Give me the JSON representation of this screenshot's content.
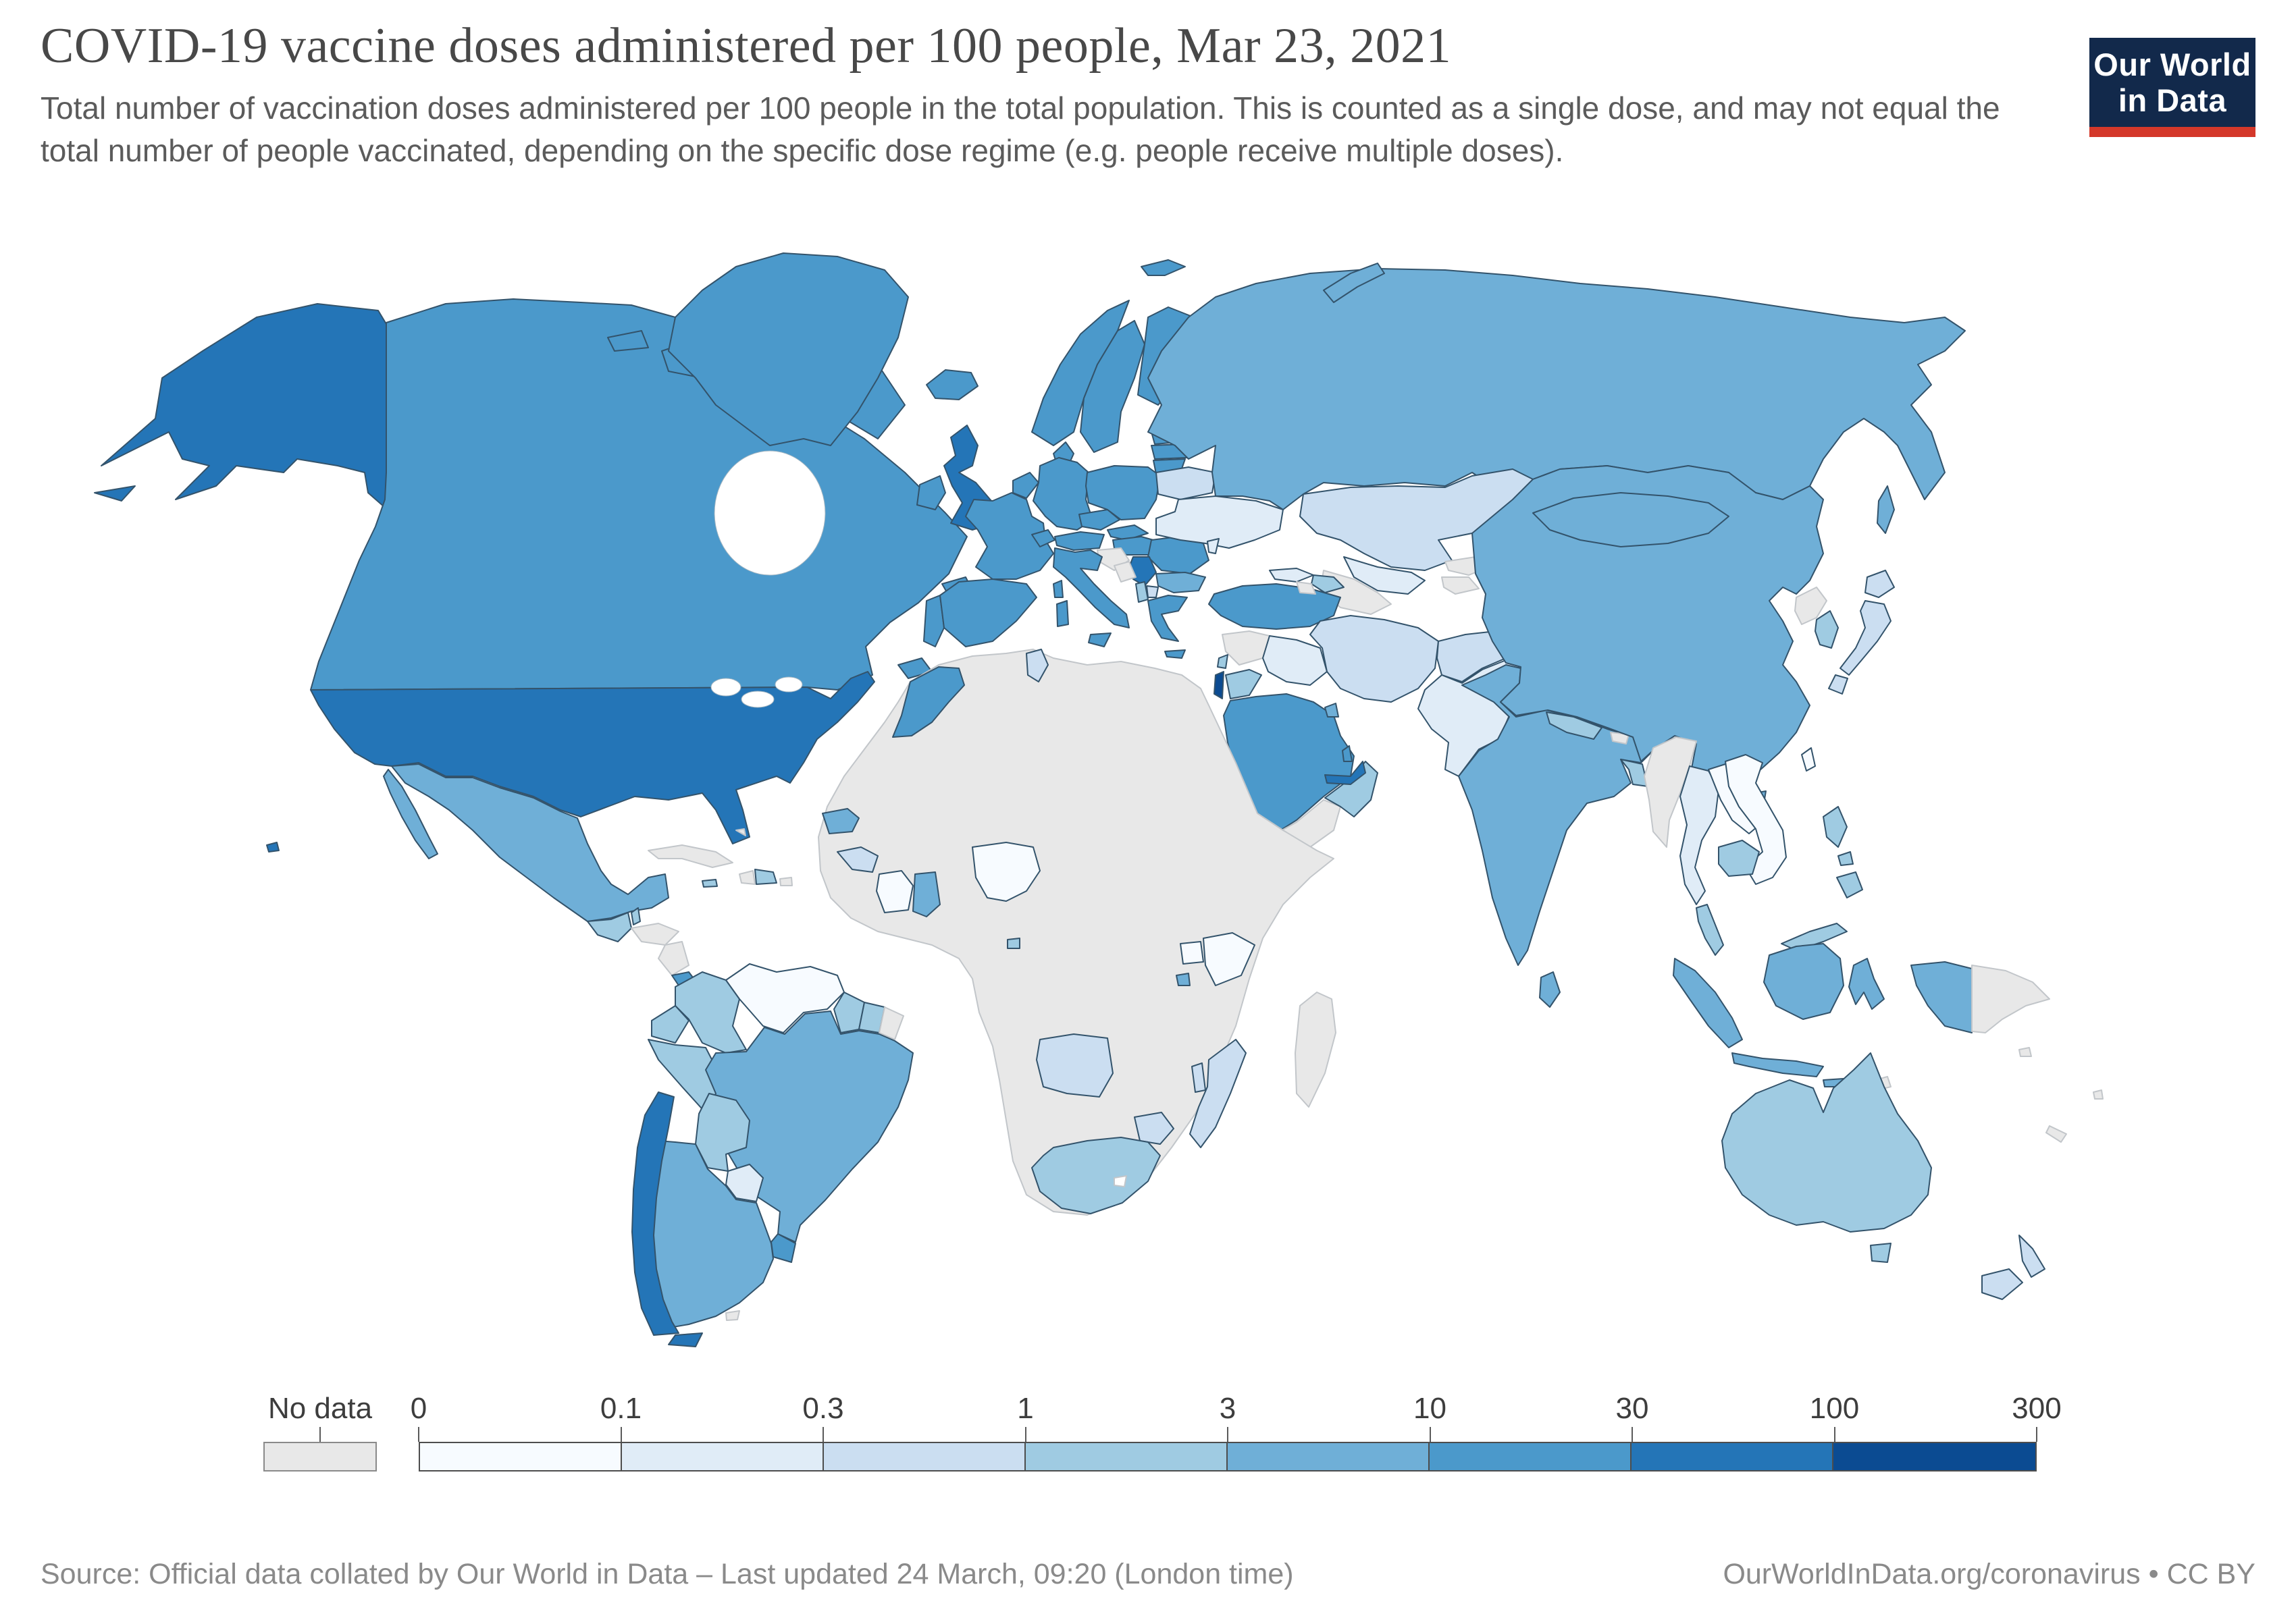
{
  "header": {
    "title": "COVID-19 vaccine doses administered per 100 people, Mar 23, 2021",
    "subtitle": "Total number of vaccination doses administered per 100 people in the total population. This is counted as a single dose, and may not equal the total number of people vaccinated, depending on the specific dose regime (e.g. people receive multiple doses)."
  },
  "logo": {
    "line1": "Our World",
    "line2": "in Data",
    "bg_color": "#12294b",
    "accent_color": "#d4382a"
  },
  "footer": {
    "source": "Source: Official data collated by Our World in Data – Last updated 24 March, 09:20 (London time)",
    "credit": "OurWorldInData.org/coronavirus • CC BY"
  },
  "legend": {
    "no_data_label": "No data"
  },
  "chart_data": {
    "type": "heatmap",
    "subtype": "world-choropleth",
    "title": "COVID-19 vaccine doses administered per 100 people",
    "date": "Mar 23, 2021",
    "unit": "vaccine doses per 100 people",
    "scale": "binned, quasi-logarithmic",
    "scale_ticks": [
      "0",
      "0.1",
      "0.3",
      "1",
      "3",
      "10",
      "30",
      "100",
      "300"
    ],
    "bins": [
      {
        "label": "0-0.1",
        "color": "#F7FBFF"
      },
      {
        "label": "0.1-0.3",
        "color": "#E0ECF7"
      },
      {
        "label": "0.3-1",
        "color": "#CBDEF1"
      },
      {
        "label": "1-3",
        "color": "#9FCBE2"
      },
      {
        "label": "3-10",
        "color": "#6FAFD7"
      },
      {
        "label": "10-30",
        "color": "#4B99CB"
      },
      {
        "label": "30-100",
        "color": "#2475B7"
      },
      {
        "label": "100-300",
        "color": "#0B4B92"
      }
    ],
    "no_data": {
      "label": "No data",
      "color": "#E8E8E8"
    },
    "regions": [
      {
        "name": "United States",
        "bin": "30-100"
      },
      {
        "name": "Canada",
        "bin": "10-30"
      },
      {
        "name": "Greenland",
        "bin": "10-30"
      },
      {
        "name": "Mexico",
        "bin": "3-10"
      },
      {
        "name": "Guatemala",
        "bin": "1-3"
      },
      {
        "name": "Belize",
        "bin": "1-3"
      },
      {
        "name": "Honduras",
        "bin": "no-data"
      },
      {
        "name": "Nicaragua",
        "bin": "no-data"
      },
      {
        "name": "Costa Rica",
        "bin": "10-30"
      },
      {
        "name": "Panama",
        "bin": "10-30"
      },
      {
        "name": "Cuba",
        "bin": "no-data"
      },
      {
        "name": "Haiti",
        "bin": "no-data"
      },
      {
        "name": "Dominican Republic",
        "bin": "1-3"
      },
      {
        "name": "Jamaica",
        "bin": "1-3"
      },
      {
        "name": "Puerto Rico",
        "bin": "no-data"
      },
      {
        "name": "Bahamas",
        "bin": "no-data"
      },
      {
        "name": "Colombia",
        "bin": "1-3"
      },
      {
        "name": "Venezuela",
        "bin": "0-0.1"
      },
      {
        "name": "Guyana",
        "bin": "1-3"
      },
      {
        "name": "Suriname",
        "bin": "1-3"
      },
      {
        "name": "French Guiana",
        "bin": "no-data"
      },
      {
        "name": "Ecuador",
        "bin": "1-3"
      },
      {
        "name": "Peru",
        "bin": "1-3"
      },
      {
        "name": "Brazil",
        "bin": "3-10"
      },
      {
        "name": "Bolivia",
        "bin": "1-3"
      },
      {
        "name": "Paraguay",
        "bin": "0.1-0.3"
      },
      {
        "name": "Uruguay",
        "bin": "10-30"
      },
      {
        "name": "Argentina",
        "bin": "3-10"
      },
      {
        "name": "Chile",
        "bin": "30-100"
      },
      {
        "name": "Falkland Islands",
        "bin": "no-data"
      },
      {
        "name": "Iceland",
        "bin": "10-30"
      },
      {
        "name": "United Kingdom",
        "bin": "30-100"
      },
      {
        "name": "Ireland",
        "bin": "10-30"
      },
      {
        "name": "Portugal",
        "bin": "10-30"
      },
      {
        "name": "Spain",
        "bin": "10-30"
      },
      {
        "name": "France",
        "bin": "10-30"
      },
      {
        "name": "Belgium & Netherlands",
        "bin": "10-30"
      },
      {
        "name": "Germany",
        "bin": "10-30"
      },
      {
        "name": "Switzerland",
        "bin": "10-30"
      },
      {
        "name": "Austria",
        "bin": "10-30"
      },
      {
        "name": "Czechia",
        "bin": "10-30"
      },
      {
        "name": "Slovakia",
        "bin": "10-30"
      },
      {
        "name": "Poland",
        "bin": "10-30"
      },
      {
        "name": "Denmark",
        "bin": "10-30"
      },
      {
        "name": "Norway",
        "bin": "10-30"
      },
      {
        "name": "Sweden",
        "bin": "10-30"
      },
      {
        "name": "Finland",
        "bin": "10-30"
      },
      {
        "name": "Estonia",
        "bin": "10-30"
      },
      {
        "name": "Latvia",
        "bin": "10-30"
      },
      {
        "name": "Lithuania",
        "bin": "10-30"
      },
      {
        "name": "Italy",
        "bin": "10-30"
      },
      {
        "name": "Greece",
        "bin": "10-30"
      },
      {
        "name": "Hungary",
        "bin": "10-30"
      },
      {
        "name": "Romania",
        "bin": "10-30"
      },
      {
        "name": "Serbia",
        "bin": "30-100"
      },
      {
        "name": "Bulgaria",
        "bin": "3-10"
      },
      {
        "name": "Croatia",
        "bin": "no-data"
      },
      {
        "name": "Bosnia and Herzegovina",
        "bin": "no-data"
      },
      {
        "name": "Albania",
        "bin": "1-3"
      },
      {
        "name": "North Macedonia",
        "bin": "0.3-1"
      },
      {
        "name": "Ukraine",
        "bin": "0.1-0.3"
      },
      {
        "name": "Belarus",
        "bin": "0.3-1"
      },
      {
        "name": "Moldova",
        "bin": "0.1-0.3"
      },
      {
        "name": "Russia",
        "bin": "3-10"
      },
      {
        "name": "Kazakhstan",
        "bin": "0.3-1"
      },
      {
        "name": "Uzbekistan",
        "bin": "0.1-0.3"
      },
      {
        "name": "Turkmenistan",
        "bin": "no-data"
      },
      {
        "name": "Kyrgyzstan",
        "bin": "no-data"
      },
      {
        "name": "Tajikistan",
        "bin": "no-data"
      },
      {
        "name": "Turkey",
        "bin": "10-30"
      },
      {
        "name": "Georgia",
        "bin": "0.1-0.3"
      },
      {
        "name": "Azerbaijan",
        "bin": "1-3"
      },
      {
        "name": "Armenia",
        "bin": "no-data"
      },
      {
        "name": "Syria",
        "bin": "no-data"
      },
      {
        "name": "Iraq",
        "bin": "0.1-0.3"
      },
      {
        "name": "Iran",
        "bin": "0.3-1"
      },
      {
        "name": "Afghanistan",
        "bin": "0.3-1"
      },
      {
        "name": "Pakistan",
        "bin": "0.1-0.3"
      },
      {
        "name": "Israel",
        "bin": "100-300"
      },
      {
        "name": "Lebanon",
        "bin": "1-3"
      },
      {
        "name": "Jordan",
        "bin": "1-3"
      },
      {
        "name": "Saudi Arabia",
        "bin": "10-30"
      },
      {
        "name": "Yemen",
        "bin": "no-data"
      },
      {
        "name": "Oman",
        "bin": "1-3"
      },
      {
        "name": "United Arab Emirates",
        "bin": "30-100"
      },
      {
        "name": "Qatar",
        "bin": "10-30"
      },
      {
        "name": "Kuwait",
        "bin": "3-10"
      },
      {
        "name": "India",
        "bin": "3-10"
      },
      {
        "name": "Nepal",
        "bin": "1-3"
      },
      {
        "name": "Bhutan",
        "bin": "no-data"
      },
      {
        "name": "Bangladesh",
        "bin": "1-3"
      },
      {
        "name": "Sri Lanka",
        "bin": "3-10"
      },
      {
        "name": "Myanmar",
        "bin": "no-data"
      },
      {
        "name": "Thailand",
        "bin": "0.1-0.3"
      },
      {
        "name": "Laos",
        "bin": "0-0.1"
      },
      {
        "name": "Vietnam",
        "bin": "0-0.1"
      },
      {
        "name": "Cambodia",
        "bin": "1-3"
      },
      {
        "name": "Malaysia",
        "bin": "1-3"
      },
      {
        "name": "China",
        "bin": "3-10"
      },
      {
        "name": "Mongolia",
        "bin": "3-10"
      },
      {
        "name": "Taiwan",
        "bin": "0-0.1"
      },
      {
        "name": "North Korea",
        "bin": "no-data"
      },
      {
        "name": "South Korea",
        "bin": "1-3"
      },
      {
        "name": "Japan",
        "bin": "0.3-1"
      },
      {
        "name": "Indonesia",
        "bin": "3-10"
      },
      {
        "name": "Philippines",
        "bin": "1-3"
      },
      {
        "name": "Papua New Guinea",
        "bin": "no-data"
      },
      {
        "name": "Timor-Leste",
        "bin": "no-data"
      },
      {
        "name": "Australia",
        "bin": "1-3"
      },
      {
        "name": "New Zealand",
        "bin": "0.3-1"
      },
      {
        "name": "New Caledonia",
        "bin": "no-data"
      },
      {
        "name": "Fiji",
        "bin": "no-data"
      },
      {
        "name": "Solomon Islands",
        "bin": "no-data"
      },
      {
        "name": "Morocco",
        "bin": "10-30"
      },
      {
        "name": "Tunisia",
        "bin": "0.3-1"
      },
      {
        "name": "Senegal",
        "bin": "3-10"
      },
      {
        "name": "Guinea",
        "bin": "0.3-1"
      },
      {
        "name": "Cote d'Ivoire",
        "bin": "0-0.1"
      },
      {
        "name": "Ghana",
        "bin": "3-10"
      },
      {
        "name": "Nigeria",
        "bin": "0-0.1"
      },
      {
        "name": "Equatorial Guinea",
        "bin": "1-3"
      },
      {
        "name": "Uganda",
        "bin": "0-0.1"
      },
      {
        "name": "Kenya",
        "bin": "0-0.1"
      },
      {
        "name": "Rwanda",
        "bin": "3-10"
      },
      {
        "name": "Angola",
        "bin": "0.3-1"
      },
      {
        "name": "Zimbabwe",
        "bin": "0.3-1"
      },
      {
        "name": "Malawi",
        "bin": "0.3-1"
      },
      {
        "name": "Mozambique",
        "bin": "0.3-1"
      },
      {
        "name": "South Africa",
        "bin": "1-3"
      },
      {
        "name": "Africa (other countries)",
        "bin": "no-data"
      },
      {
        "name": "Madagascar",
        "bin": "no-data"
      }
    ]
  }
}
